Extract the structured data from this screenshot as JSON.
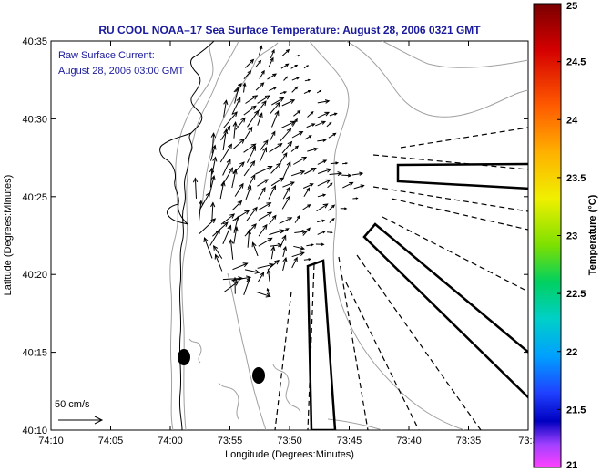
{
  "title": "RU COOL  NOAA–17  Sea Surface Temperature:  August 28, 2006 0321 GMT",
  "overlay": {
    "line1": "Raw Surface Current:",
    "line2": "August 28, 2006 03:00 GMT"
  },
  "axes": {
    "xlabel": "Longitude (Degrees:Minutes)",
    "ylabel": "Latitude (Degrees:Minutes)",
    "xticks": [
      "74:10",
      "74:05",
      "74:00",
      "73:55",
      "73:50",
      "73:45",
      "73:40",
      "73:35",
      "73:3"
    ],
    "yticks": [
      "40:35",
      "40:30",
      "40:25",
      "40:20",
      "40:15",
      "40:10"
    ]
  },
  "scale_label": "50 cm/s",
  "colorbar": {
    "label": "Temperature (°C)",
    "ticks": [
      "25",
      "24.5",
      "24",
      "23.5",
      "23",
      "22.5",
      "22",
      "21.5",
      "21"
    ],
    "min": 21,
    "max": 25
  },
  "colors": {
    "title": "#1a1a9c",
    "overlay_text": "#1a1a9c",
    "contour": "#a0a0a0",
    "ink": "#000000"
  }
}
